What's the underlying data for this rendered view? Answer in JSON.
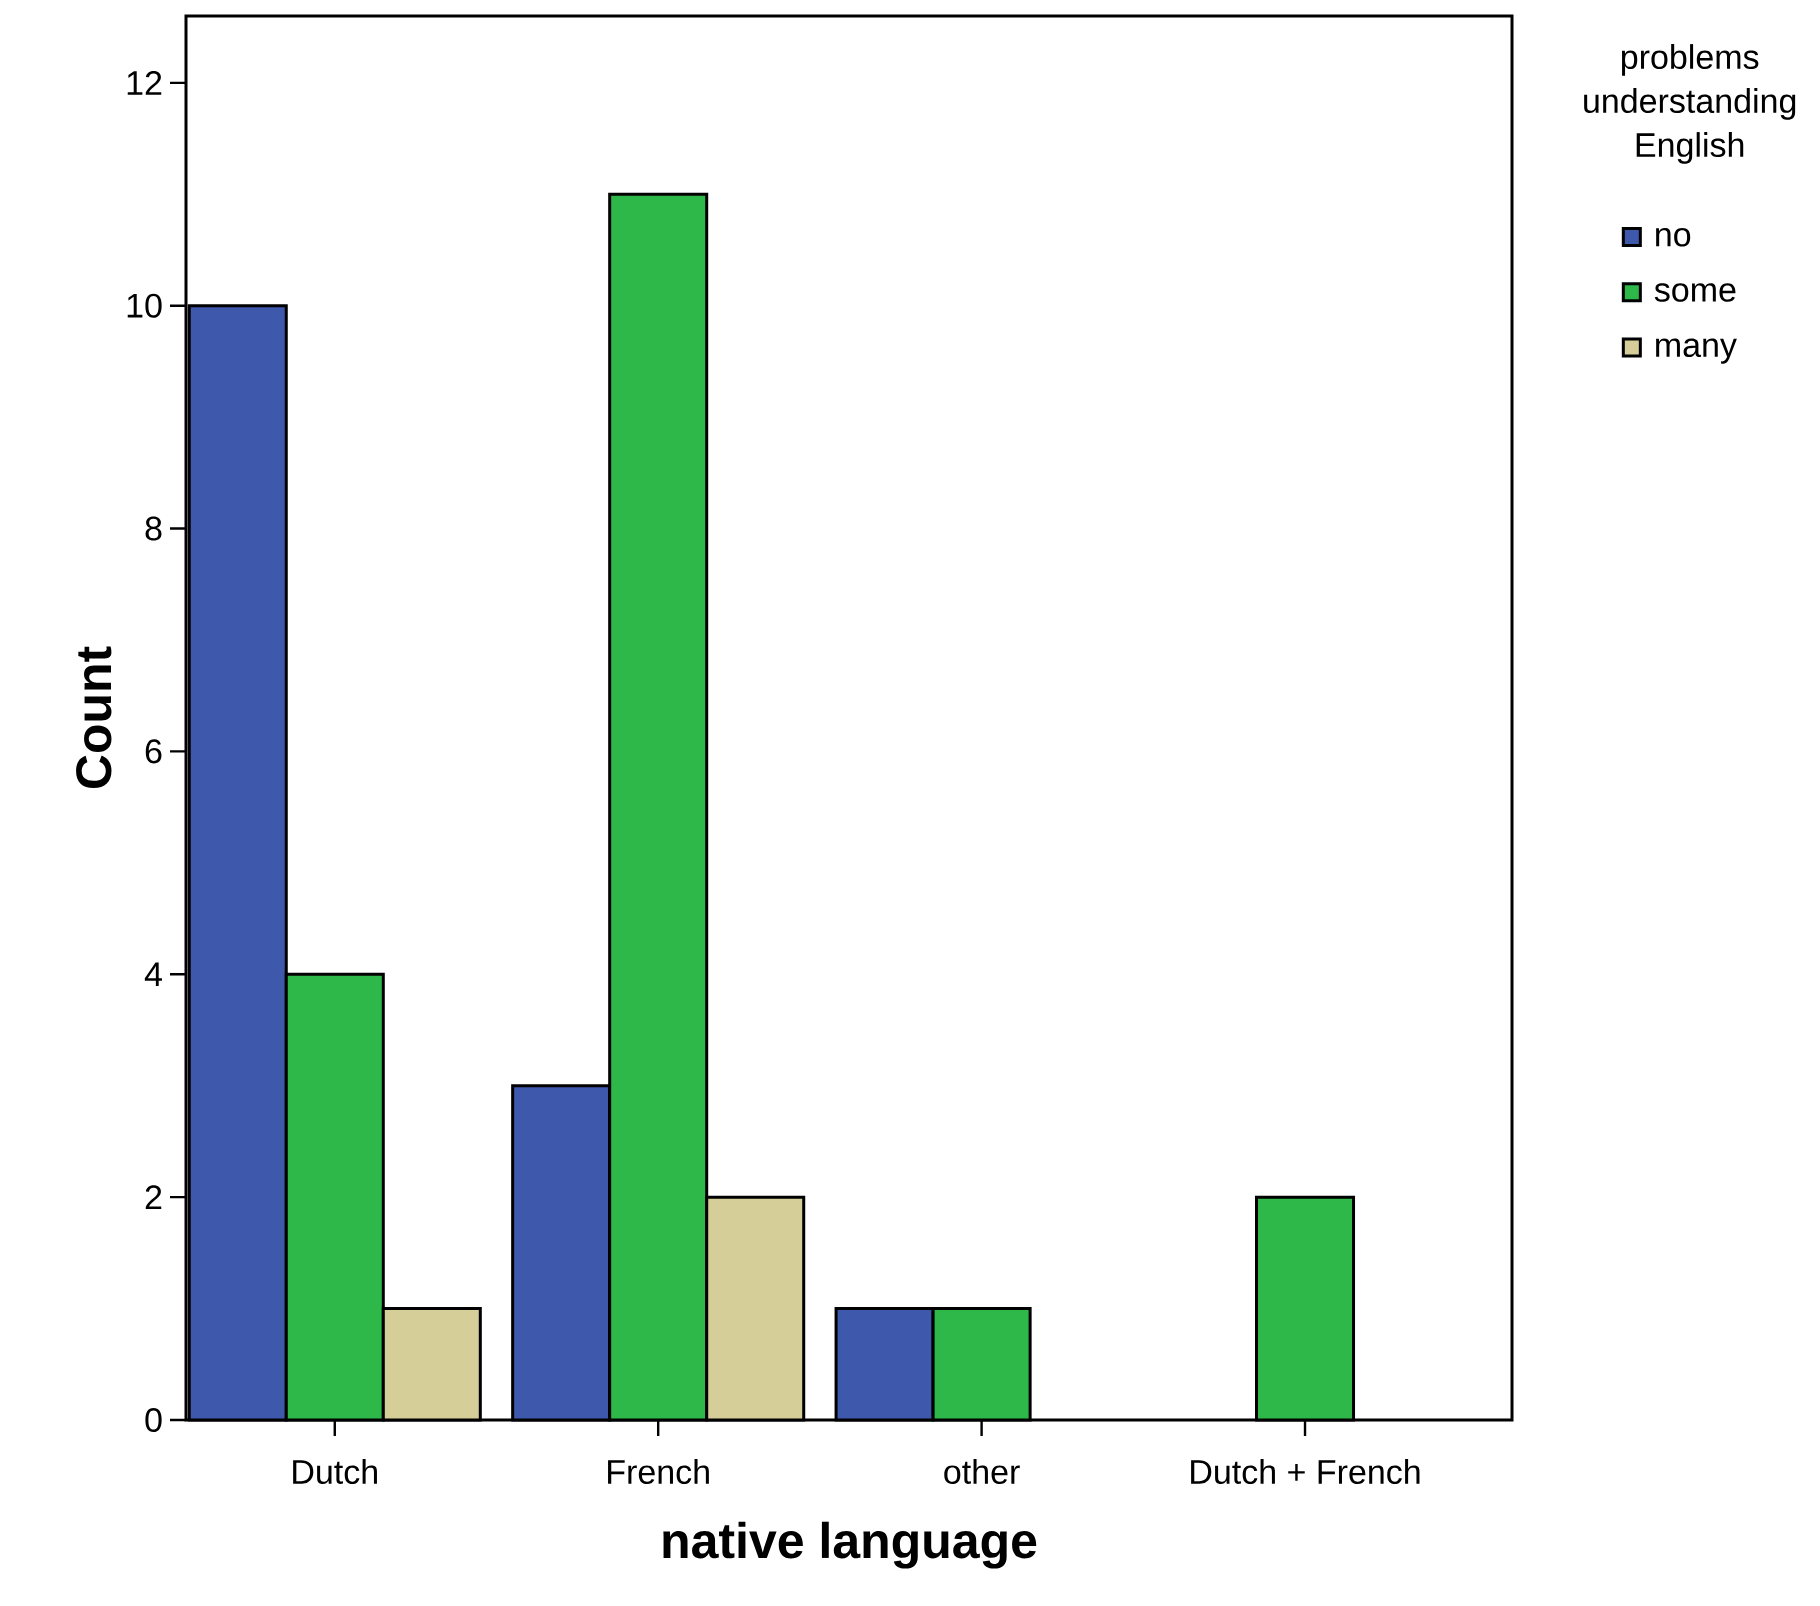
{
  "chart_data": {
    "type": "bar",
    "xlabel": "native language",
    "ylabel": "Count",
    "legend_title": "problems understanding English",
    "categories": [
      "Dutch",
      "French",
      "other",
      "Dutch + French"
    ],
    "series": [
      {
        "name": "no",
        "color": "#3e58ac",
        "values": [
          10,
          3,
          1,
          null
        ]
      },
      {
        "name": "some",
        "color": "#2fb84a",
        "values": [
          4,
          11,
          1,
          2
        ]
      },
      {
        "name": "many",
        "color": "#d5ce98",
        "values": [
          1,
          2,
          null,
          null
        ]
      }
    ],
    "ylim": [
      0,
      12.6
    ],
    "yticks": [
      0,
      2,
      4,
      6,
      8,
      10,
      12
    ],
    "legend": "top right"
  }
}
